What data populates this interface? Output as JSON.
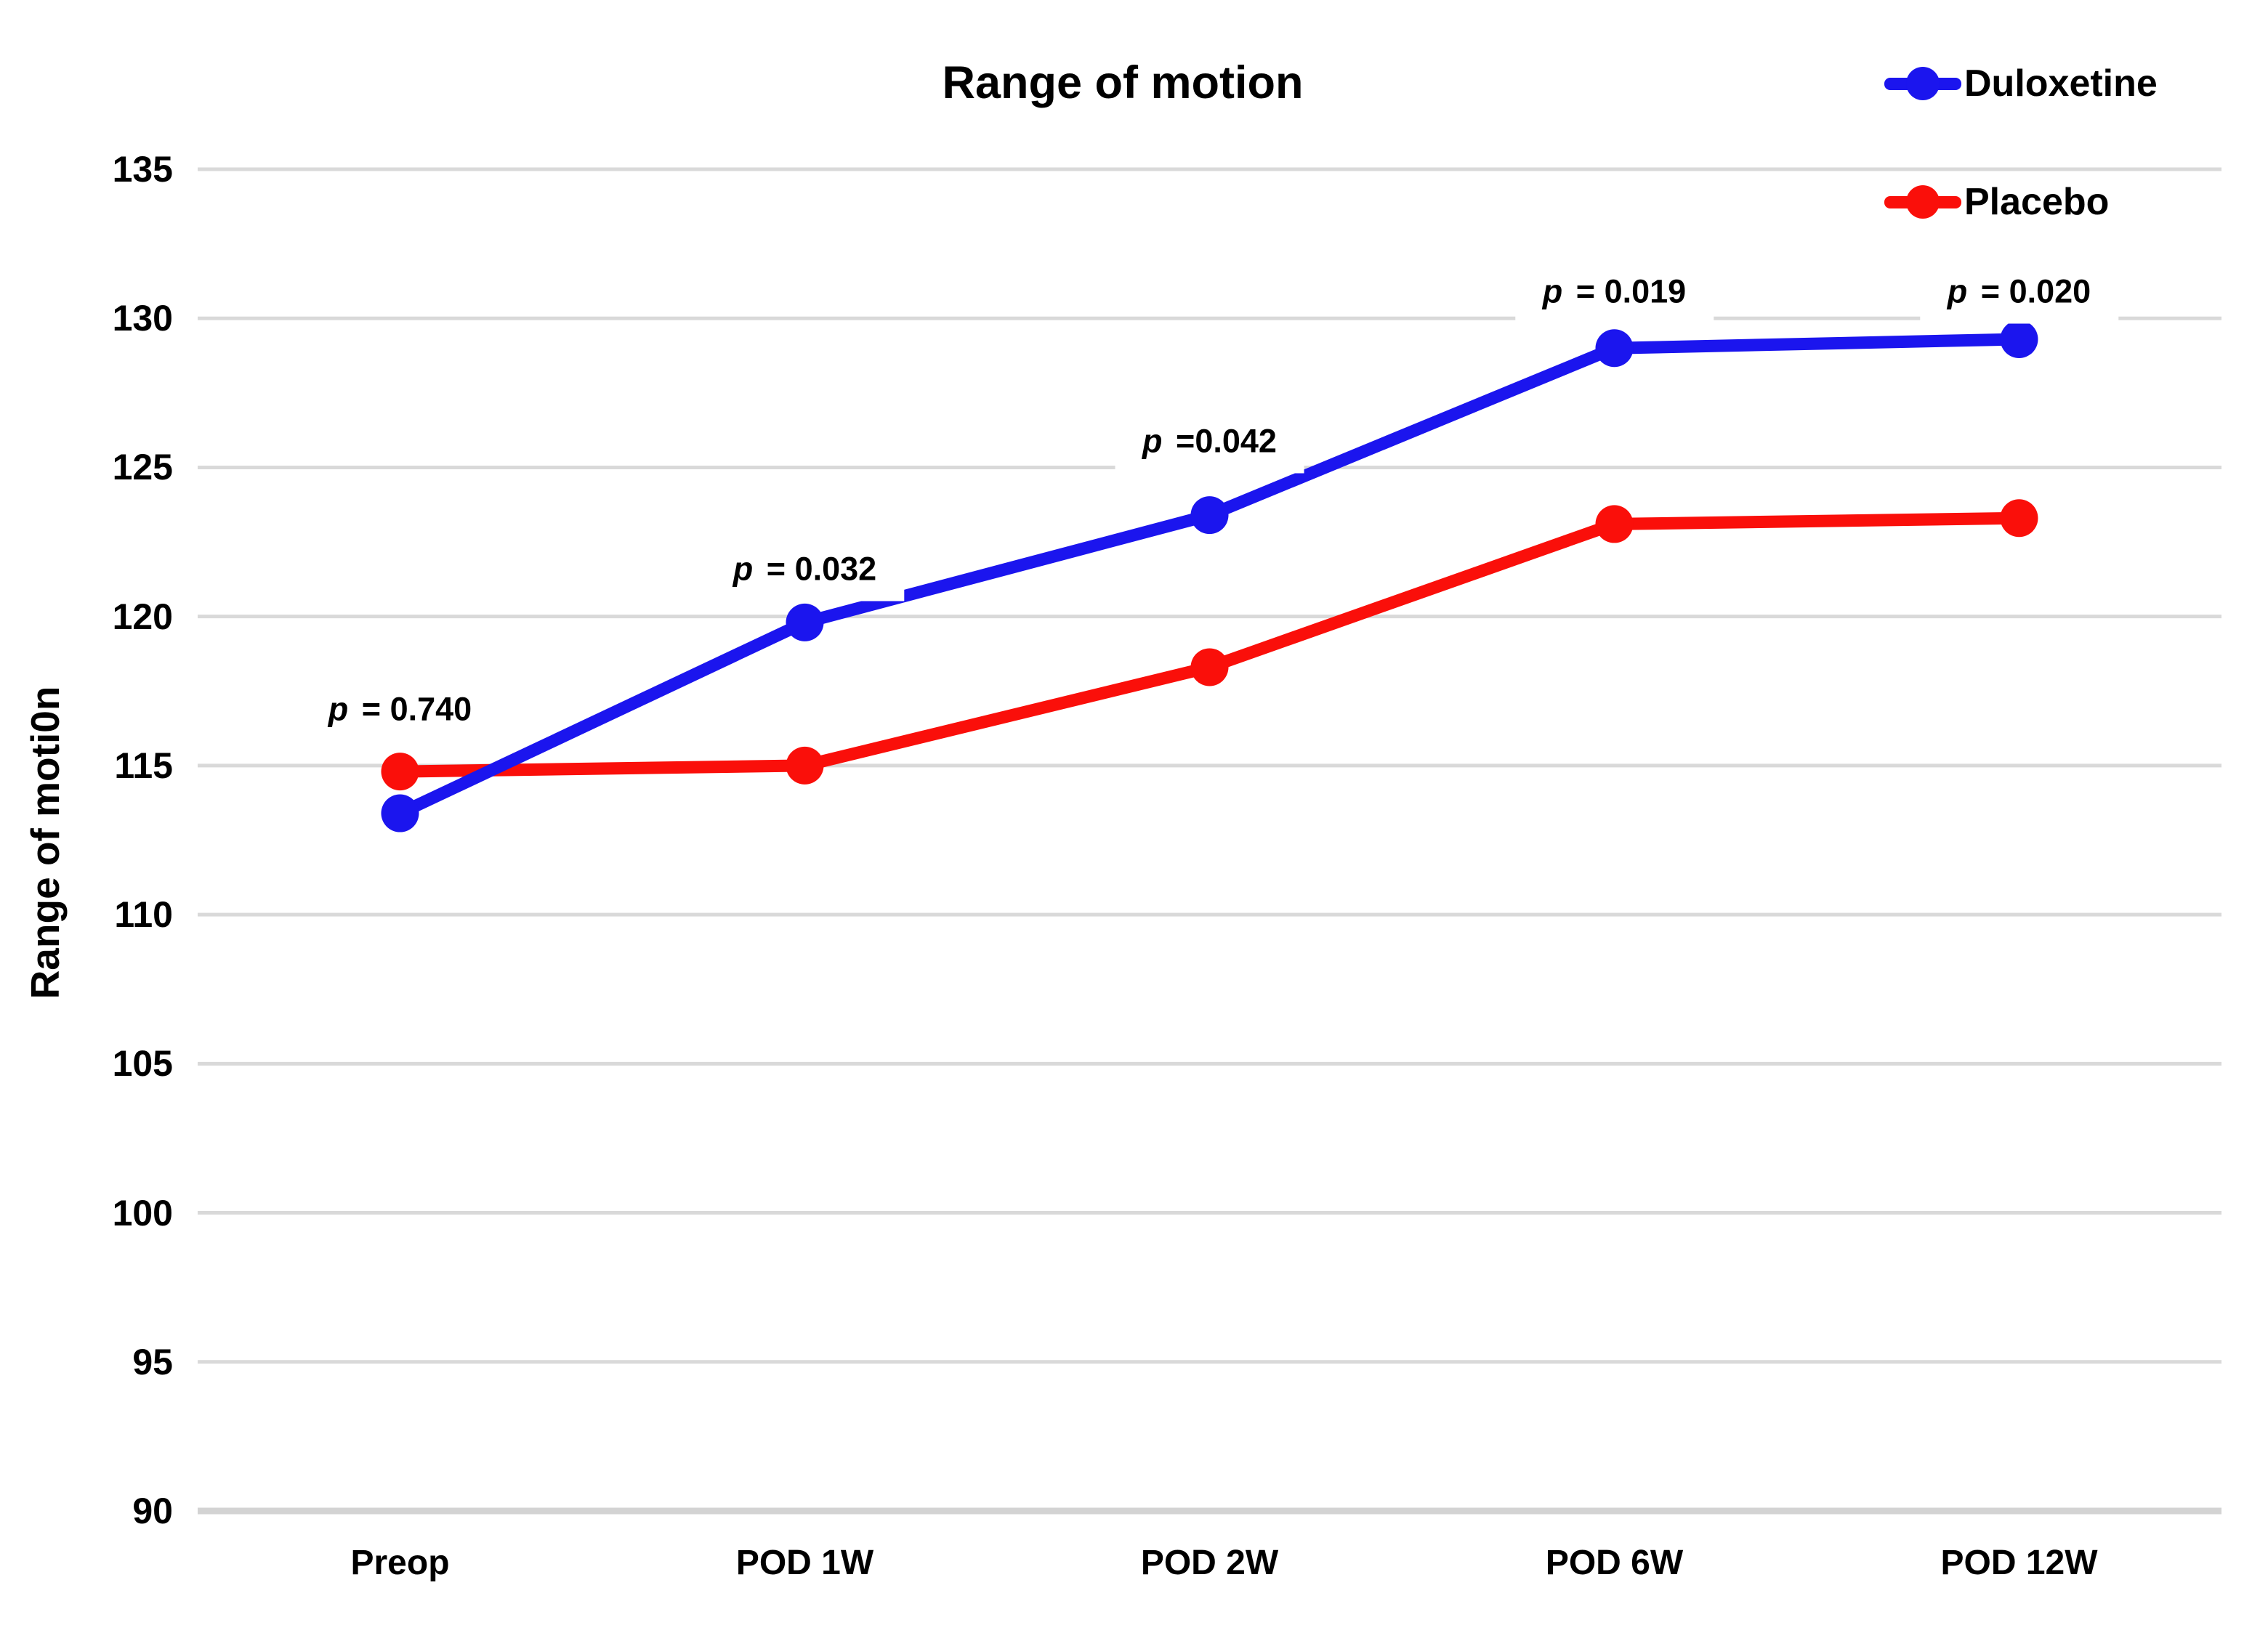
{
  "chart_data": {
    "type": "line",
    "title": "Range of motion",
    "ylabel": "Range of moti0n",
    "xlabel": "",
    "categories": [
      "Preop",
      "POD 1W",
      "POD 2W",
      "POD 6W",
      "POD 12W"
    ],
    "series": [
      {
        "name": "Duloxetine",
        "color": "#1b15ee",
        "values": [
          113.4,
          119.8,
          123.4,
          129.0,
          129.3
        ]
      },
      {
        "name": "Placebo",
        "color": "#fa0f0a",
        "values": [
          114.8,
          115.0,
          118.3,
          123.1,
          123.3
        ]
      }
    ],
    "annotations": [
      {
        "label": "p = 0.740",
        "category": "Preop",
        "y": 116.9
      },
      {
        "label": "p = 0.032",
        "category": "POD 1W",
        "y": 121.6
      },
      {
        "label": "p =0.042",
        "category": "POD 2W",
        "y": 125.9
      },
      {
        "label": "p = 0.019",
        "category": "POD 6W",
        "y": 130.9
      },
      {
        "label": "p = 0.020",
        "category": "POD 12W",
        "y": 130.9
      }
    ],
    "yticks": [
      135,
      130,
      125,
      120,
      115,
      110,
      105,
      100,
      95,
      90
    ],
    "ylim": [
      90,
      135
    ],
    "legend_position": "top-right",
    "grid": "horizontal",
    "gridline_color": "#d9d9d9",
    "axis_line_color": "#d3d3d3"
  }
}
